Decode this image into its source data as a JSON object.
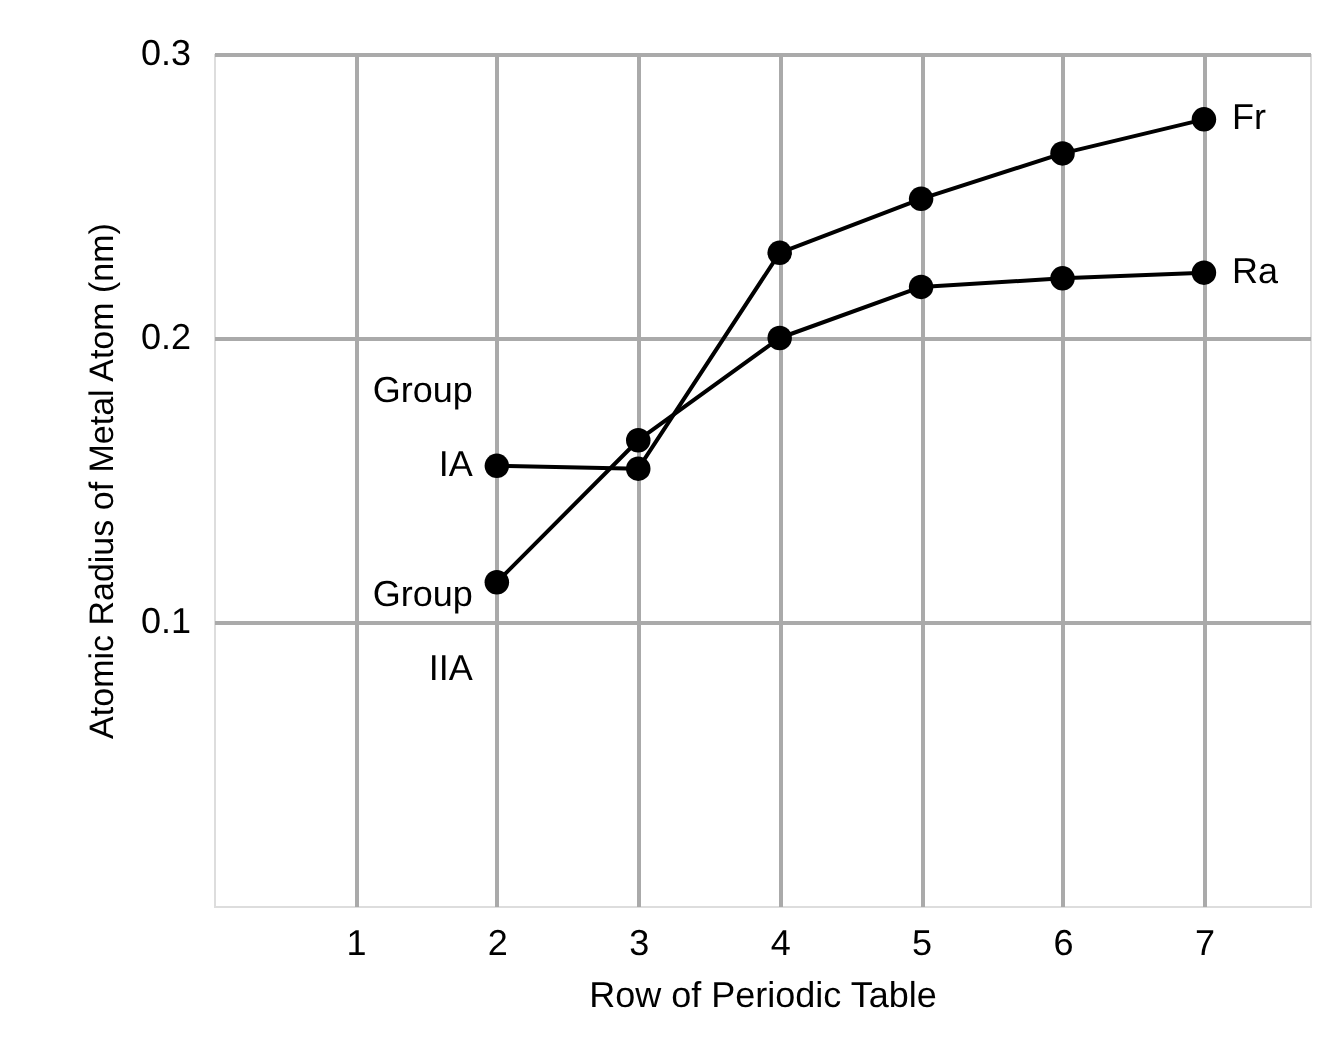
{
  "chart_data": {
    "type": "line",
    "xlabel": "Row of Periodic Table",
    "ylabel": "Atomic Radius of Metal Atom (nm)",
    "x": [
      2,
      3,
      4,
      5,
      6,
      7
    ],
    "series": [
      {
        "name": "Group IA",
        "color": "#000000",
        "values": [
          0.155,
          0.154,
          0.23,
          0.249,
          0.265,
          0.277
        ]
      },
      {
        "name": "Group IIA",
        "color": "#000000",
        "values": [
          0.114,
          0.164,
          0.2,
          0.218,
          0.221,
          0.223
        ]
      }
    ],
    "annotations": [
      {
        "text": "Fr",
        "x": 7,
        "y": 0.277
      },
      {
        "text": "Ra",
        "x": 7,
        "y": 0.223
      }
    ],
    "xlim": [
      0,
      7.75
    ],
    "xticks": [
      1,
      2,
      3,
      4,
      5,
      6,
      7
    ],
    "ylim": [
      0,
      0.3
    ],
    "yticks": [
      0.1,
      0.2,
      0.3
    ],
    "grid": true,
    "marker": "circle",
    "line_style": "solid"
  }
}
